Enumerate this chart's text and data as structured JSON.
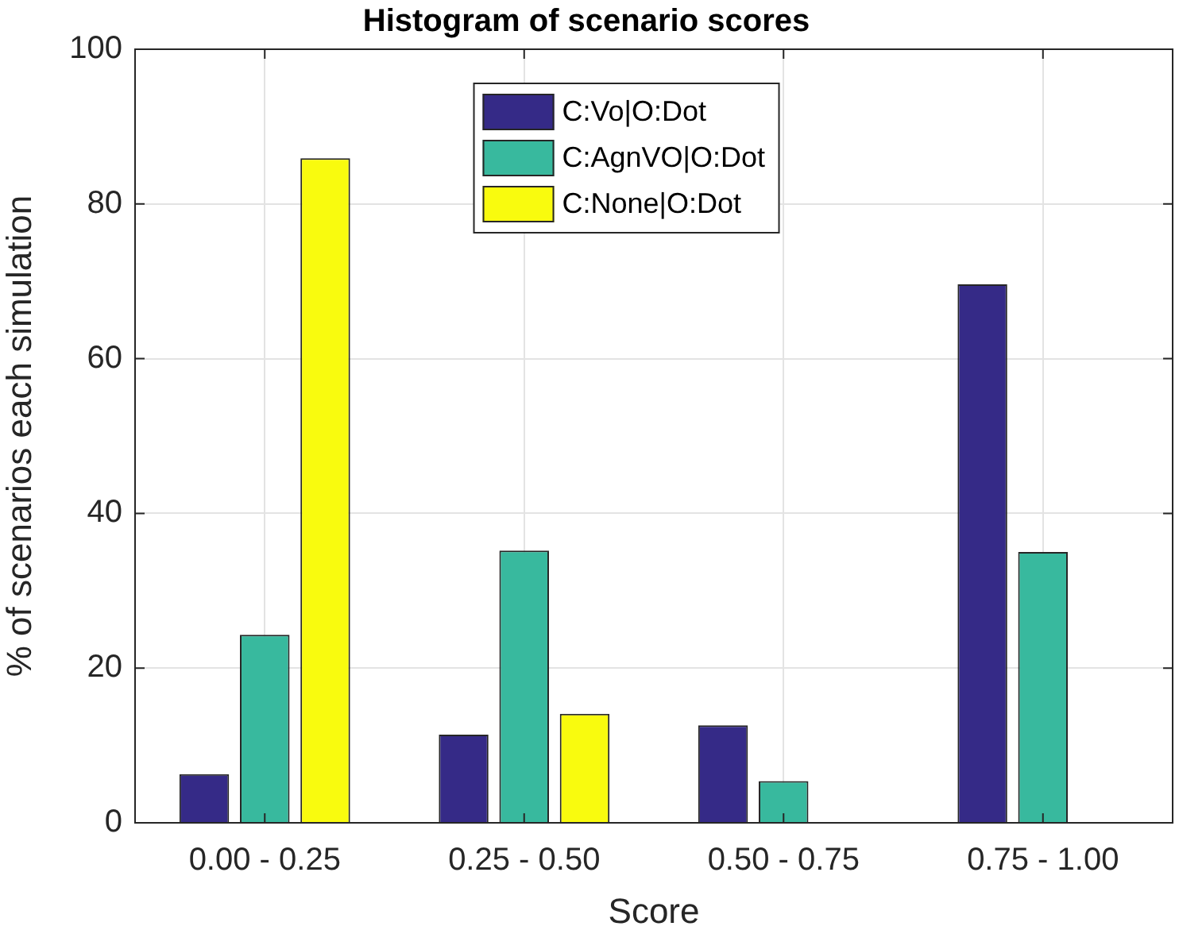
{
  "chart_data": {
    "type": "bar",
    "title": "Histogram of scenario scores",
    "xlabel": "Score",
    "ylabel": "% of scenarios each simulation",
    "categories": [
      "0.00 - 0.25",
      "0.25 - 0.50",
      "0.50 - 0.75",
      "0.75 - 1.00"
    ],
    "series": [
      {
        "name": "C:Vo|O:Dot",
        "color": "#352a87",
        "values": [
          6.3,
          11.4,
          12.6,
          69.6
        ]
      },
      {
        "name": "C:AgnVO|O:Dot",
        "color": "#38b99e",
        "values": [
          24.3,
          35.2,
          5.4,
          35.0
        ]
      },
      {
        "name": "C:None|O:Dot",
        "color": "#f9fb0e",
        "values": [
          85.9,
          14.1,
          0,
          0
        ]
      }
    ],
    "ylim": [
      0,
      100
    ],
    "yticks": [
      0,
      20,
      40,
      60,
      80,
      100
    ],
    "grid": true,
    "legend": "top"
  }
}
